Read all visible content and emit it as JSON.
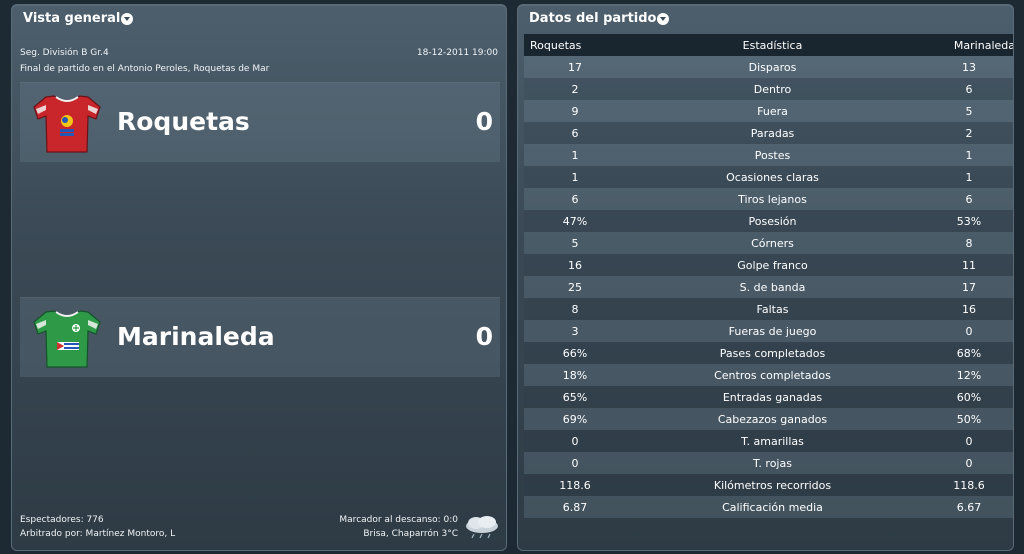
{
  "overview": {
    "title": "Vista general",
    "competition": "Seg. División B Gr.4",
    "datetime": "18-12-2011 19:00",
    "venue_line": "Final de partido en el Antonio Peroles, Roquetas de Mar",
    "home": {
      "name": "Roquetas",
      "score": "0",
      "shirt_color": "#c8262b"
    },
    "away": {
      "name": "Marinaleda",
      "score": "0",
      "shirt_color": "#2e9a48"
    },
    "attendance": "Espectadores: 776",
    "referee": "Arbitrado por: Martínez Montoro, L",
    "halftime": "Marcador al descanso: 0:0",
    "weather": "Brisa, Chaparrón 3°C",
    "weather_icon": "cloud-rain-icon"
  },
  "match_stats": {
    "title": "Datos del partido",
    "headers": {
      "home": "Roquetas",
      "stat": "Estadística",
      "away": "Marinaleda"
    },
    "rows": [
      {
        "home": "17",
        "stat": "Disparos",
        "away": "13"
      },
      {
        "home": "2",
        "stat": "Dentro",
        "away": "6"
      },
      {
        "home": "9",
        "stat": "Fuera",
        "away": "5"
      },
      {
        "home": "6",
        "stat": "Paradas",
        "away": "2"
      },
      {
        "home": "1",
        "stat": "Postes",
        "away": "1"
      },
      {
        "home": "1",
        "stat": "Ocasiones claras",
        "away": "1"
      },
      {
        "home": "6",
        "stat": "Tiros lejanos",
        "away": "6"
      },
      {
        "home": "47%",
        "stat": "Posesión",
        "away": "53%"
      },
      {
        "home": "5",
        "stat": "Córners",
        "away": "8"
      },
      {
        "home": "16",
        "stat": "Golpe franco",
        "away": "11"
      },
      {
        "home": "25",
        "stat": "S. de banda",
        "away": "17"
      },
      {
        "home": "8",
        "stat": "Faltas",
        "away": "16"
      },
      {
        "home": "3",
        "stat": "Fueras de juego",
        "away": "0"
      },
      {
        "home": "66%",
        "stat": "Pases completados",
        "away": "68%"
      },
      {
        "home": "18%",
        "stat": "Centros completados",
        "away": "12%"
      },
      {
        "home": "65%",
        "stat": "Entradas ganadas",
        "away": "60%"
      },
      {
        "home": "69%",
        "stat": "Cabezazos ganados",
        "away": "50%"
      },
      {
        "home": "0",
        "stat": "T. amarillas",
        "away": "0"
      },
      {
        "home": "0",
        "stat": "T. rojas",
        "away": "0"
      },
      {
        "home": "118.6",
        "stat": "Kilómetros recorridos",
        "away": "118.6"
      },
      {
        "home": "6.87",
        "stat": "Calificación media",
        "away": "6.67"
      }
    ]
  }
}
